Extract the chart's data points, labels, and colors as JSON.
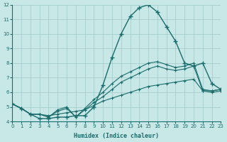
{
  "xlabel": "Humidex (Indice chaleur)",
  "xlim": [
    0,
    23
  ],
  "ylim": [
    4,
    12
  ],
  "yticks": [
    4,
    5,
    6,
    7,
    8,
    9,
    10,
    11,
    12
  ],
  "xticks": [
    0,
    1,
    2,
    3,
    4,
    5,
    6,
    7,
    8,
    9,
    10,
    11,
    12,
    13,
    14,
    15,
    16,
    17,
    18,
    19,
    20,
    21,
    22,
    23
  ],
  "bg_color": "#c8e8e8",
  "line_color": "#1a6b6b",
  "grid_color": "#a0c8c8",
  "line1_x": [
    0,
    1,
    2,
    3,
    4,
    5,
    6,
    7,
    8,
    9,
    10,
    11,
    12,
    13,
    14,
    15,
    16,
    17,
    18,
    19,
    20,
    21,
    22,
    23
  ],
  "line1_y": [
    5.2,
    4.9,
    4.5,
    4.2,
    4.2,
    4.3,
    4.3,
    4.4,
    4.4,
    5.0,
    6.5,
    8.4,
    10.0,
    11.2,
    11.8,
    12.0,
    11.5,
    10.5,
    9.5,
    8.0,
    7.8,
    8.0,
    6.6,
    6.2
  ],
  "line2_x": [
    0,
    1,
    2,
    3,
    4,
    5,
    6,
    7,
    8,
    9,
    10,
    11,
    12,
    13,
    14,
    15,
    16,
    17,
    18,
    19,
    20,
    21,
    22,
    23
  ],
  "line2_y": [
    5.2,
    4.9,
    4.5,
    4.5,
    4.3,
    4.8,
    5.0,
    4.3,
    4.9,
    5.5,
    6.0,
    6.6,
    7.1,
    7.4,
    7.7,
    8.0,
    8.1,
    7.9,
    7.7,
    7.8,
    8.0,
    6.2,
    6.1,
    6.2
  ],
  "line3_x": [
    0,
    1,
    2,
    3,
    4,
    5,
    6,
    7,
    8,
    9,
    10,
    11,
    12,
    13,
    14,
    15,
    16,
    17,
    18,
    19,
    20,
    21,
    22,
    23
  ],
  "line3_y": [
    5.2,
    4.9,
    4.5,
    4.5,
    4.3,
    4.7,
    4.9,
    4.3,
    4.8,
    5.3,
    5.7,
    6.2,
    6.7,
    7.0,
    7.3,
    7.6,
    7.8,
    7.6,
    7.5,
    7.6,
    7.8,
    6.1,
    6.0,
    6.1
  ],
  "line4_x": [
    0,
    1,
    2,
    3,
    4,
    5,
    6,
    7,
    8,
    9,
    10,
    11,
    12,
    13,
    14,
    15,
    16,
    17,
    18,
    19,
    20,
    21,
    22,
    23
  ],
  "line4_y": [
    5.2,
    4.9,
    4.5,
    4.5,
    4.4,
    4.5,
    4.6,
    4.7,
    4.8,
    5.1,
    5.4,
    5.6,
    5.8,
    6.0,
    6.2,
    6.4,
    6.5,
    6.6,
    6.7,
    6.8,
    6.9,
    6.1,
    6.1,
    6.2
  ]
}
